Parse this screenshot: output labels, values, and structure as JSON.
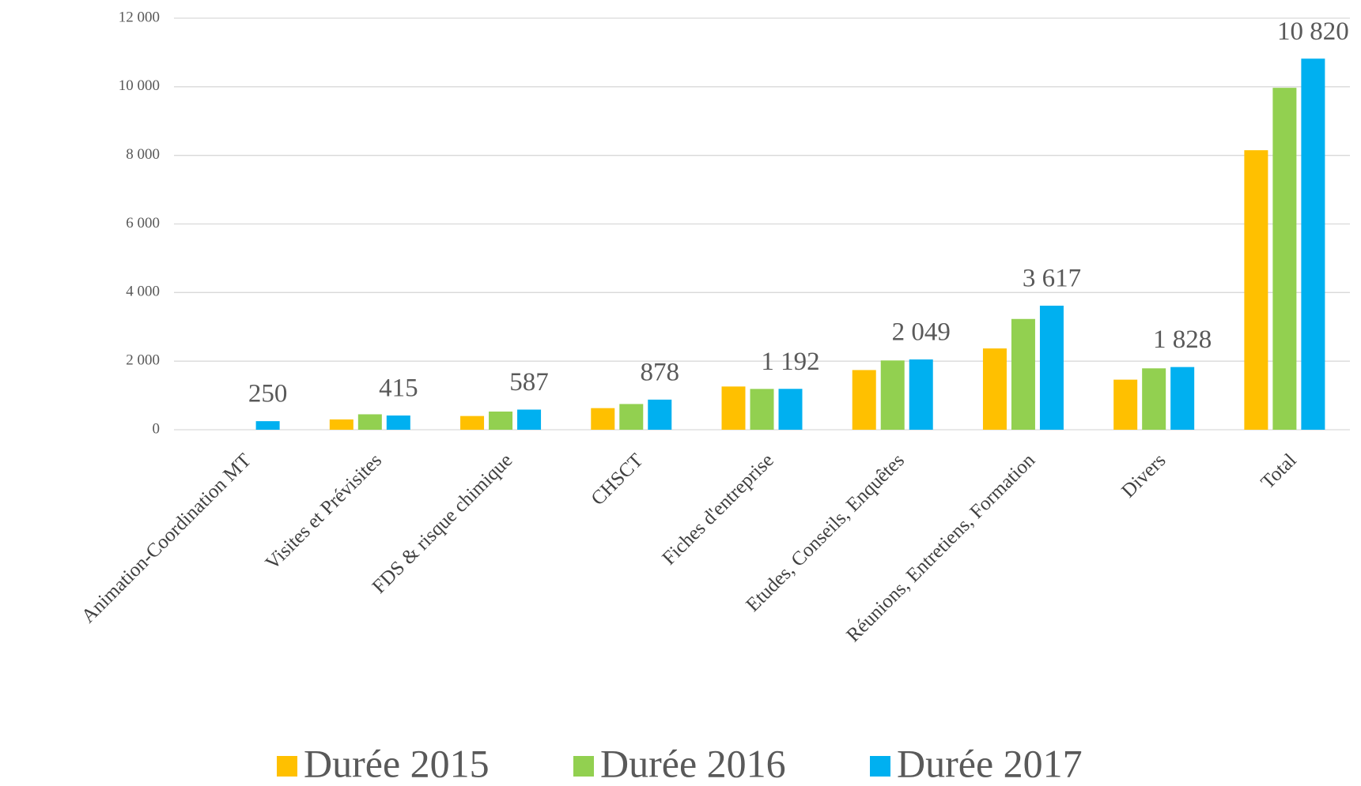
{
  "chart_data": {
    "type": "bar",
    "categories": [
      "Animation-Coordination MT",
      "Visites et Prévisites",
      "FDS & risque chimique",
      "CHSCT",
      "Fiches d'entreprise",
      "Etudes, Conseils, Enquêtes",
      "Réunions, Entretiens, Formation",
      "Divers",
      "Total"
    ],
    "series": [
      {
        "name": "Durée 2015",
        "color": "#ffc000",
        "values": [
          null,
          300,
          400,
          630,
          1260,
          1740,
          2370,
          1460,
          8150
        ]
      },
      {
        "name": "Durée 2016",
        "color": "#92d050",
        "values": [
          null,
          450,
          530,
          750,
          1190,
          2020,
          3230,
          1790,
          9970
        ]
      },
      {
        "name": "Durée 2017",
        "color": "#00b0f0",
        "values": [
          250,
          415,
          587,
          878,
          1192,
          2049,
          3617,
          1828,
          10820
        ],
        "value_labels": [
          "250",
          "415",
          "587",
          "878",
          "1 192",
          "2 049",
          "3 617",
          "1 828",
          "10 820"
        ]
      }
    ],
    "ylim": [
      0,
      12000
    ],
    "yticks": [
      0,
      {
        "value": 2000,
        "label": "2 000"
      },
      {
        "value": 4000,
        "label": "4 000"
      },
      {
        "value": 6000,
        "label": "6 000"
      },
      {
        "value": 8000,
        "label": "8 000"
      },
      {
        "value": 10000,
        "label": "10 000"
      },
      {
        "value": 12000,
        "label": "12 000"
      }
    ],
    "grid": true,
    "legend": "bottom"
  }
}
